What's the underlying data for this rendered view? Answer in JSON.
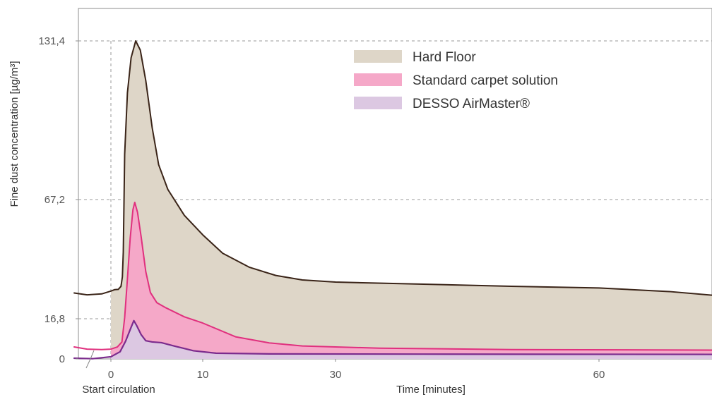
{
  "colors": {
    "hard_floor_fill": "#ded6c8",
    "hard_floor_line": "#3a2418",
    "standard_fill": "#f5a8c8",
    "standard_line": "#e0307e",
    "desso_fill": "#dcc8e2",
    "desso_line": "#7b2b8d",
    "grid": "#9a9a9a",
    "frame": "#8c8c8c"
  },
  "chart_data": {
    "type": "area",
    "title": "",
    "xlabel": "Time [minutes]",
    "ylabel": "Fine dust concentration [µg/m³]",
    "x_start_label": "Start circulation",
    "x_ticks": [
      {
        "label": "0",
        "value": 0
      },
      {
        "label": "10",
        "value": 10
      },
      {
        "label": "30",
        "value": 30
      },
      {
        "label": "60",
        "value": 60
      }
    ],
    "y_ticks": [
      {
        "label": "0",
        "value": 0
      },
      {
        "label": "16,8",
        "value": 16.8
      },
      {
        "label": "67,2",
        "value": 67.2
      },
      {
        "label": "131,4",
        "value": 131.4
      }
    ],
    "gridlines": [
      16.8,
      67.2,
      131.4
    ],
    "legend_position": "top-center",
    "series": [
      {
        "name": "Hard Floor",
        "points": [
          [
            -4.0,
            27.7
          ],
          [
            -2.6,
            26.9
          ],
          [
            -1.0,
            27.3
          ],
          [
            0.0,
            28.5
          ],
          [
            0.4,
            29.1
          ],
          [
            0.8,
            29.2
          ],
          [
            1.1,
            30.5
          ],
          [
            1.25,
            34.5
          ],
          [
            1.35,
            45.0
          ],
          [
            1.5,
            85.5
          ],
          [
            1.8,
            110.4
          ],
          [
            2.2,
            124.6
          ],
          [
            2.7,
            131.4
          ],
          [
            3.2,
            127.7
          ],
          [
            3.8,
            115.3
          ],
          [
            4.5,
            96.2
          ],
          [
            5.2,
            81.3
          ],
          [
            6.2,
            71.3
          ],
          [
            8.0,
            60.5
          ],
          [
            10.0,
            52.3
          ],
          [
            13.0,
            44.5
          ],
          [
            17.0,
            38.6
          ],
          [
            21.0,
            35.1
          ],
          [
            25.0,
            33.2
          ],
          [
            30.0,
            32.3
          ],
          [
            40.0,
            31.4
          ],
          [
            50.0,
            30.5
          ],
          [
            60.0,
            29.8
          ],
          [
            68.0,
            28.3
          ],
          [
            73.0,
            26.7
          ]
        ]
      },
      {
        "name": "Standard carpet solution",
        "points": [
          [
            -4.0,
            5.0
          ],
          [
            -2.6,
            4.1
          ],
          [
            -1.0,
            3.9
          ],
          [
            0.0,
            4.1
          ],
          [
            0.7,
            5.0
          ],
          [
            1.2,
            7.1
          ],
          [
            1.5,
            17.3
          ],
          [
            1.8,
            33.7
          ],
          [
            2.1,
            50.8
          ],
          [
            2.4,
            62.9
          ],
          [
            2.6,
            66.0
          ],
          [
            2.9,
            61.8
          ],
          [
            3.3,
            51.3
          ],
          [
            3.8,
            36.7
          ],
          [
            4.3,
            27.9
          ],
          [
            5.0,
            23.6
          ],
          [
            6.0,
            21.4
          ],
          [
            8.0,
            17.6
          ],
          [
            10.0,
            15.0
          ],
          [
            15.0,
            9.2
          ],
          [
            20.0,
            6.7
          ],
          [
            25.0,
            5.4
          ],
          [
            35.0,
            4.5
          ],
          [
            50.0,
            3.9
          ],
          [
            73.0,
            3.7
          ]
        ]
      },
      {
        "name": "DESSO AirMaster®",
        "points": [
          [
            -4.0,
            0.3
          ],
          [
            -2.0,
            0.1
          ],
          [
            0.0,
            0.9
          ],
          [
            1.0,
            3.0
          ],
          [
            1.6,
            7.4
          ],
          [
            2.2,
            13.2
          ],
          [
            2.5,
            16.0
          ],
          [
            2.8,
            14.0
          ],
          [
            3.3,
            10.1
          ],
          [
            3.8,
            7.6
          ],
          [
            4.5,
            7.1
          ],
          [
            5.5,
            6.8
          ],
          [
            7.0,
            5.3
          ],
          [
            9.0,
            3.4
          ],
          [
            12.0,
            2.4
          ],
          [
            20.0,
            2.1
          ],
          [
            40.0,
            2.0
          ],
          [
            73.0,
            1.9
          ]
        ]
      }
    ]
  }
}
